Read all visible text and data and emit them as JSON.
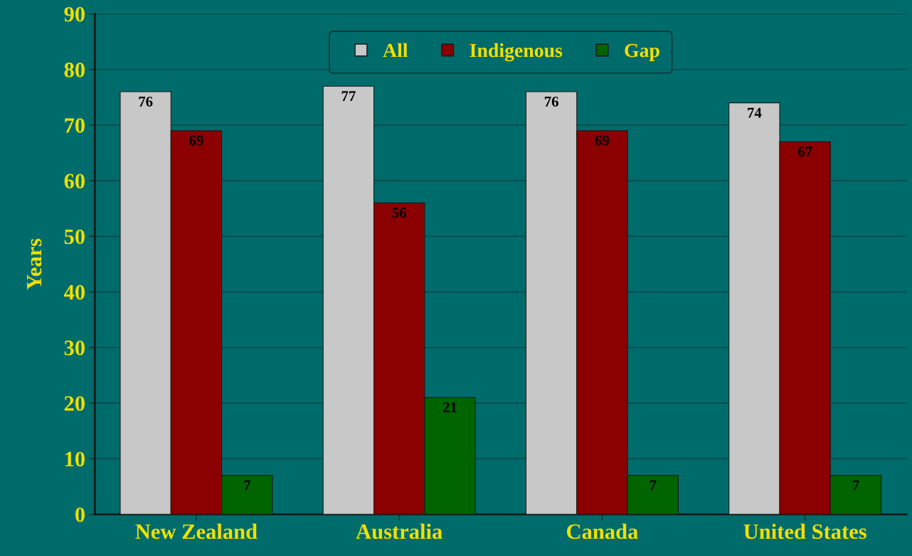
{
  "chart_data": {
    "type": "bar",
    "ylabel": "Years",
    "categories": [
      "New Zealand",
      "Australia",
      "Canada",
      "United States"
    ],
    "series": [
      {
        "name": "All",
        "color": "#c8c8c8",
        "values": [
          76,
          77,
          76,
          74
        ]
      },
      {
        "name": "Indigenous",
        "color": "#8b0000",
        "values": [
          69,
          56,
          69,
          67
        ]
      },
      {
        "name": "Gap",
        "color": "#006400",
        "values": [
          7,
          21,
          7,
          7
        ]
      }
    ],
    "ylim": [
      0,
      90
    ],
    "yticks": [
      0,
      10,
      20,
      30,
      40,
      50,
      60,
      70,
      80,
      90
    ],
    "grid": "y",
    "legend": "top",
    "data_labels": true
  }
}
